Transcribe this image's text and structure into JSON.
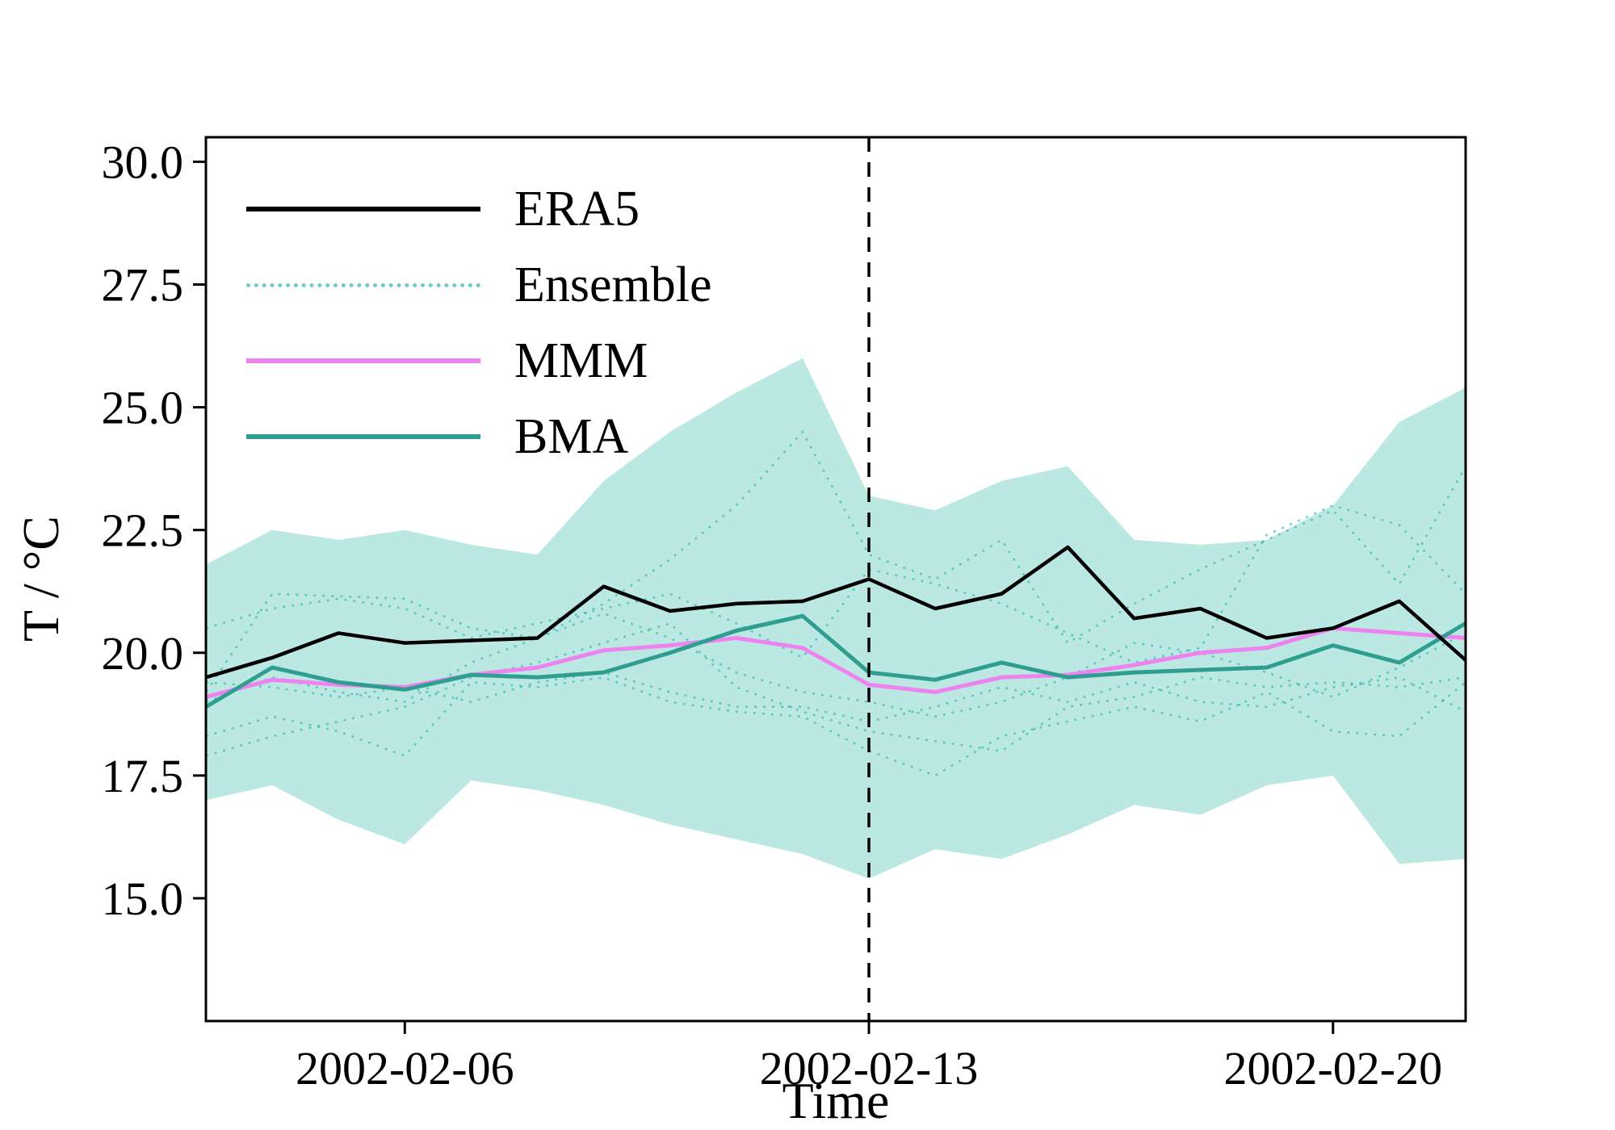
{
  "chart_data": {
    "type": "line",
    "title": "",
    "xlabel": "Time",
    "ylabel": "T / °C",
    "grid": false,
    "legend_position": "upper left",
    "ylim": [
      12.5,
      30.5
    ],
    "y_ticks": [
      {
        "value": 30.0,
        "label": "30.0"
      },
      {
        "value": 27.5,
        "label": "27.5"
      },
      {
        "value": 25.0,
        "label": "25.0"
      },
      {
        "value": 22.5,
        "label": "22.5"
      },
      {
        "value": 20.0,
        "label": "20.0"
      },
      {
        "value": 17.5,
        "label": "17.5"
      },
      {
        "value": 15.0,
        "label": "15.0"
      }
    ],
    "x": [
      "2002-02-03",
      "2002-02-04",
      "2002-02-05",
      "2002-02-06",
      "2002-02-07",
      "2002-02-08",
      "2002-02-09",
      "2002-02-10",
      "2002-02-11",
      "2002-02-12",
      "2002-02-13",
      "2002-02-14",
      "2002-02-15",
      "2002-02-16",
      "2002-02-17",
      "2002-02-18",
      "2002-02-19",
      "2002-02-20",
      "2002-02-21",
      "2002-02-22"
    ],
    "x_ticks": [
      {
        "index": 3,
        "label": "2002-02-06"
      },
      {
        "index": 10,
        "label": "2002-02-13"
      },
      {
        "index": 17,
        "label": "2002-02-20"
      }
    ],
    "vline": {
      "x_index": 10,
      "at": "2002-02-13",
      "color": "#000000",
      "line_style": "dashed"
    },
    "band": {
      "name": "ensemble-range",
      "color": "#bce8e4",
      "upper": [
        21.8,
        22.5,
        22.3,
        22.5,
        22.2,
        22.0,
        23.5,
        24.5,
        25.3,
        26.0,
        23.2,
        22.9,
        23.5,
        23.8,
        22.3,
        22.2,
        22.3,
        23.0,
        24.7,
        25.4
      ],
      "lower": [
        17.0,
        17.3,
        16.6,
        16.1,
        17.4,
        17.2,
        16.9,
        16.5,
        16.2,
        15.9,
        15.4,
        16.0,
        15.8,
        16.3,
        16.9,
        16.7,
        17.3,
        17.5,
        15.7,
        15.8
      ]
    },
    "ensemble": {
      "name": "Ensemble",
      "color": "#20b2aa",
      "line_style": "dotted",
      "members": [
        [
          19.2,
          21.2,
          21.15,
          21.1,
          20.5,
          20.3,
          21.0,
          21.9,
          23.0,
          24.5,
          22.0,
          21.5,
          22.3,
          20.2,
          21.0,
          21.7,
          22.3,
          22.9,
          21.4,
          23.8
        ],
        [
          18.3,
          18.7,
          18.4,
          17.9,
          19.4,
          19.3,
          19.5,
          19.0,
          18.8,
          18.7,
          18.0,
          17.5,
          18.3,
          18.6,
          18.9,
          18.6,
          19.2,
          18.4,
          18.3,
          19.4
        ],
        [
          19.4,
          19.3,
          19.1,
          19.3,
          19.0,
          19.4,
          19.6,
          19.2,
          18.9,
          18.9,
          18.6,
          18.9,
          19.3,
          19.0,
          19.4,
          19.0,
          18.9,
          19.3,
          19.5,
          18.8
        ],
        [
          17.9,
          18.3,
          18.6,
          18.9,
          19.5,
          19.8,
          20.2,
          20.6,
          19.3,
          18.8,
          18.4,
          18.2,
          18.0,
          18.9,
          19.1,
          19.5,
          19.3,
          19.4,
          19.3,
          19.5
        ],
        [
          20.5,
          20.9,
          21.1,
          20.9,
          20.3,
          20.6,
          20.9,
          21.2,
          20.6,
          19.9,
          21.7,
          21.4,
          21.0,
          20.4,
          19.8,
          20.1,
          22.4,
          23.0,
          22.6,
          21.2
        ],
        [
          19.0,
          19.5,
          19.2,
          19.0,
          19.8,
          20.3,
          20.8,
          20.3,
          19.6,
          19.2,
          19.0,
          18.7,
          19.0,
          19.5,
          20.2,
          20.0,
          19.6,
          19.1,
          19.7,
          20.4
        ]
      ]
    },
    "series": [
      {
        "name": "ERA5",
        "color": "#000000",
        "line_style": "solid",
        "values": [
          19.5,
          19.9,
          20.4,
          20.2,
          20.25,
          20.3,
          21.35,
          20.85,
          21.0,
          21.05,
          21.5,
          20.9,
          21.2,
          22.15,
          20.7,
          20.9,
          20.3,
          20.5,
          21.05,
          19.85
        ]
      },
      {
        "name": "MMM",
        "color": "#ee82ee",
        "line_style": "solid",
        "values": [
          19.1,
          19.45,
          19.35,
          19.3,
          19.55,
          19.7,
          20.05,
          20.15,
          20.3,
          20.1,
          19.35,
          19.2,
          19.5,
          19.55,
          19.75,
          20.0,
          20.1,
          20.5,
          20.4,
          20.3
        ]
      },
      {
        "name": "BMA",
        "color": "#2f9e91",
        "line_style": "solid",
        "values": [
          18.9,
          19.7,
          19.4,
          19.25,
          19.55,
          19.5,
          19.6,
          20.0,
          20.45,
          20.75,
          19.6,
          19.45,
          19.8,
          19.5,
          19.6,
          19.65,
          19.7,
          20.15,
          19.8,
          20.6
        ]
      }
    ],
    "legend": [
      {
        "label": "ERA5",
        "color": "#000000",
        "line_style": "solid"
      },
      {
        "label": "Ensemble",
        "color": "#20b2aa",
        "line_style": "dotted"
      },
      {
        "label": "MMM",
        "color": "#ee82ee",
        "line_style": "solid"
      },
      {
        "label": "BMA",
        "color": "#2f9e91",
        "line_style": "solid"
      }
    ]
  }
}
